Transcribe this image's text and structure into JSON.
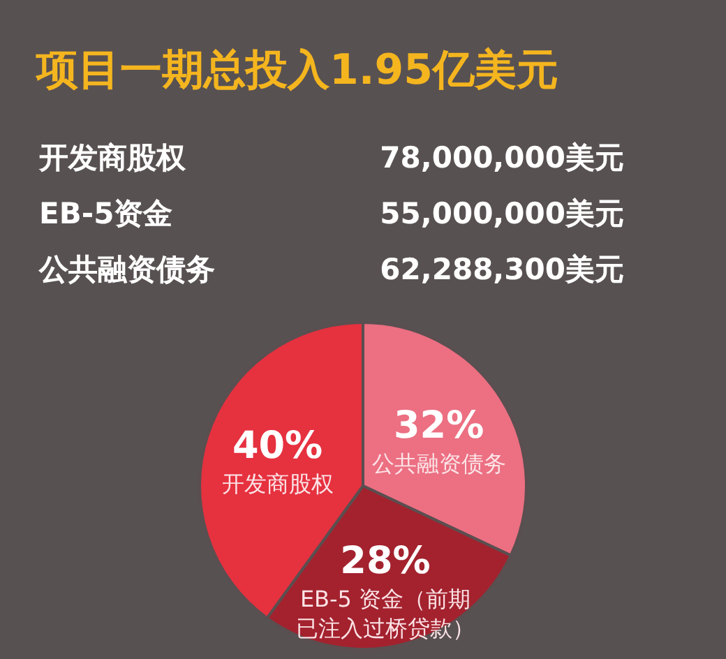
{
  "chart_data": {
    "type": "pie",
    "title": "项目一期总投入1.95亿美元",
    "annotations": [
      "开发商股权  78,000,000美元",
      "EB-5资金  55,000,000美元",
      "公共融资债务  62,288,300美元"
    ],
    "categories": [
      "公共融资债务",
      "EB-5 资金（前期已注入过桥贷款）",
      "开发商股权"
    ],
    "values": [
      32,
      28,
      40
    ],
    "colors": [
      "#ec6f82",
      "#a3222e",
      "#e6313f"
    ],
    "value_labels": [
      "32%",
      "28%",
      "40%"
    ]
  }
}
